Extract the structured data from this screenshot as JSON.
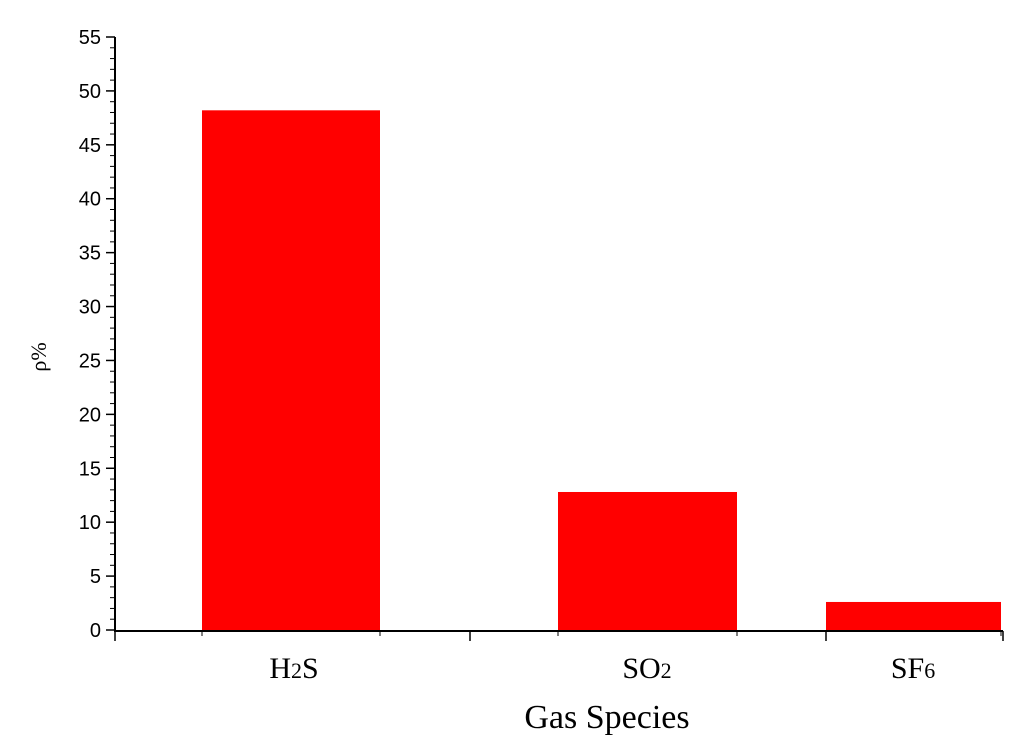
{
  "chart_data": {
    "type": "bar",
    "categories": [
      {
        "base": "H",
        "sub": "2",
        "tail": "S"
      },
      {
        "base": "SO",
        "sub": "2",
        "tail": ""
      },
      {
        "base": "SF",
        "sub": "6",
        "tail": ""
      }
    ],
    "values": [
      48.2,
      12.8,
      2.6
    ],
    "xlabel": "Gas Species",
    "ylabel": "ρ%",
    "ylim": [
      0,
      55
    ],
    "yticks": [
      0,
      5,
      10,
      15,
      20,
      25,
      30,
      35,
      40,
      45,
      50,
      55
    ],
    "grid": false,
    "bar_color": "#ff0000"
  }
}
